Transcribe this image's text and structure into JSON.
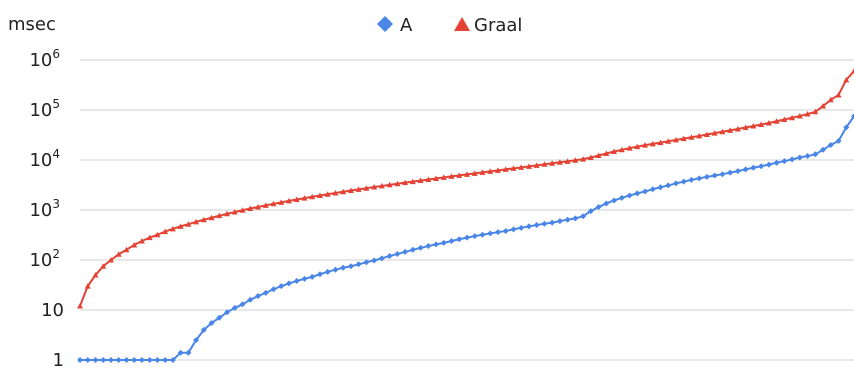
{
  "chart_data": {
    "type": "line",
    "title": "",
    "xlabel": "",
    "ylabel": "msec",
    "y_scale": "log",
    "ylim": [
      1,
      1000000
    ],
    "grid": true,
    "legend": "top-center",
    "y_ticks": [
      {
        "base": "1",
        "exp": ""
      },
      {
        "base": "10",
        "exp": ""
      },
      {
        "base": "10",
        "exp": "2"
      },
      {
        "base": "10",
        "exp": "3"
      },
      {
        "base": "10",
        "exp": "4"
      },
      {
        "base": "10",
        "exp": "5"
      },
      {
        "base": "10",
        "exp": "6"
      }
    ],
    "colors": {
      "A": "#4a86e8",
      "Graal": "#e34234",
      "grid": "#d0d0d0"
    },
    "series": [
      {
        "name": "A",
        "marker": "diamond",
        "x": [
          0,
          1,
          2,
          3,
          4,
          5,
          6,
          7,
          8,
          9,
          10,
          11,
          12,
          13,
          14,
          15,
          16,
          17,
          18,
          19,
          20,
          21,
          22,
          23,
          24,
          25,
          26,
          27,
          28,
          29,
          30,
          31,
          32,
          33,
          34,
          35,
          36,
          37,
          38,
          39,
          40,
          41,
          42,
          43,
          44,
          45,
          46,
          47,
          48,
          49,
          50,
          51,
          52,
          53,
          54,
          55,
          56,
          57,
          58,
          59,
          60,
          61,
          62,
          63,
          64,
          65,
          66,
          67,
          68,
          69,
          70,
          71,
          72,
          73,
          74,
          75,
          76,
          77,
          78,
          79,
          80,
          81,
          82,
          83,
          84,
          85,
          86,
          87,
          88,
          89,
          90,
          91,
          92,
          93,
          94,
          95,
          96,
          97,
          98,
          99,
          100
        ],
        "values": [
          1,
          1,
          1,
          1,
          1,
          1,
          1,
          1,
          1,
          1,
          1,
          1,
          1,
          1.4,
          1.4,
          2.5,
          4,
          5.5,
          7,
          9,
          11,
          13,
          16,
          19,
          22,
          26,
          30,
          34,
          38,
          42,
          46,
          52,
          58,
          64,
          70,
          75,
          82,
          90,
          98,
          108,
          120,
          132,
          145,
          160,
          175,
          190,
          205,
          220,
          240,
          260,
          280,
          300,
          320,
          340,
          360,
          380,
          410,
          440,
          470,
          500,
          530,
          560,
          600,
          640,
          680,
          750,
          950,
          1150,
          1350,
          1550,
          1750,
          1950,
          2150,
          2350,
          2600,
          2850,
          3100,
          3400,
          3700,
          4000,
          4300,
          4600,
          4900,
          5200,
          5600,
          6000,
          6500,
          7000,
          7500,
          8100,
          8800,
          9500,
          10300,
          11200,
          12000,
          13000,
          16000,
          20000,
          24000,
          45000,
          75000
        ]
      },
      {
        "name": "Graal",
        "marker": "triangle",
        "x": [
          0,
          1,
          2,
          3,
          4,
          5,
          6,
          7,
          8,
          9,
          10,
          11,
          12,
          13,
          14,
          15,
          16,
          17,
          18,
          19,
          20,
          21,
          22,
          23,
          24,
          25,
          26,
          27,
          28,
          29,
          30,
          31,
          32,
          33,
          34,
          35,
          36,
          37,
          38,
          39,
          40,
          41,
          42,
          43,
          44,
          45,
          46,
          47,
          48,
          49,
          50,
          51,
          52,
          53,
          54,
          55,
          56,
          57,
          58,
          59,
          60,
          61,
          62,
          63,
          64,
          65,
          66,
          67,
          68,
          69,
          70,
          71,
          72,
          73,
          74,
          75,
          76,
          77,
          78,
          79,
          80,
          81,
          82,
          83,
          84,
          85,
          86,
          87,
          88,
          89,
          90,
          91,
          92,
          93,
          94,
          95,
          96,
          97,
          98,
          99,
          100
        ],
        "values": [
          12,
          30,
          50,
          75,
          100,
          130,
          160,
          200,
          240,
          280,
          320,
          370,
          420,
          470,
          520,
          580,
          640,
          700,
          770,
          840,
          910,
          990,
          1070,
          1150,
          1240,
          1330,
          1420,
          1520,
          1620,
          1730,
          1840,
          1950,
          2070,
          2190,
          2320,
          2450,
          2590,
          2730,
          2880,
          3030,
          3190,
          3350,
          3520,
          3700,
          3880,
          4070,
          4270,
          4480,
          4700,
          4920,
          5150,
          5400,
          5650,
          5920,
          6200,
          6500,
          6800,
          7100,
          7450,
          7800,
          8200,
          8600,
          9000,
          9400,
          9900,
          10400,
          11200,
          12300,
          13500,
          14800,
          16000,
          17300,
          18500,
          19800,
          21000,
          22300,
          23700,
          25200,
          26800,
          28500,
          30300,
          32300,
          34400,
          36700,
          39200,
          41800,
          44700,
          47800,
          51200,
          55000,
          59500,
          64500,
          70000,
          76000,
          83000,
          92000,
          120000,
          160000,
          200000,
          400000,
          600000
        ]
      }
    ]
  }
}
